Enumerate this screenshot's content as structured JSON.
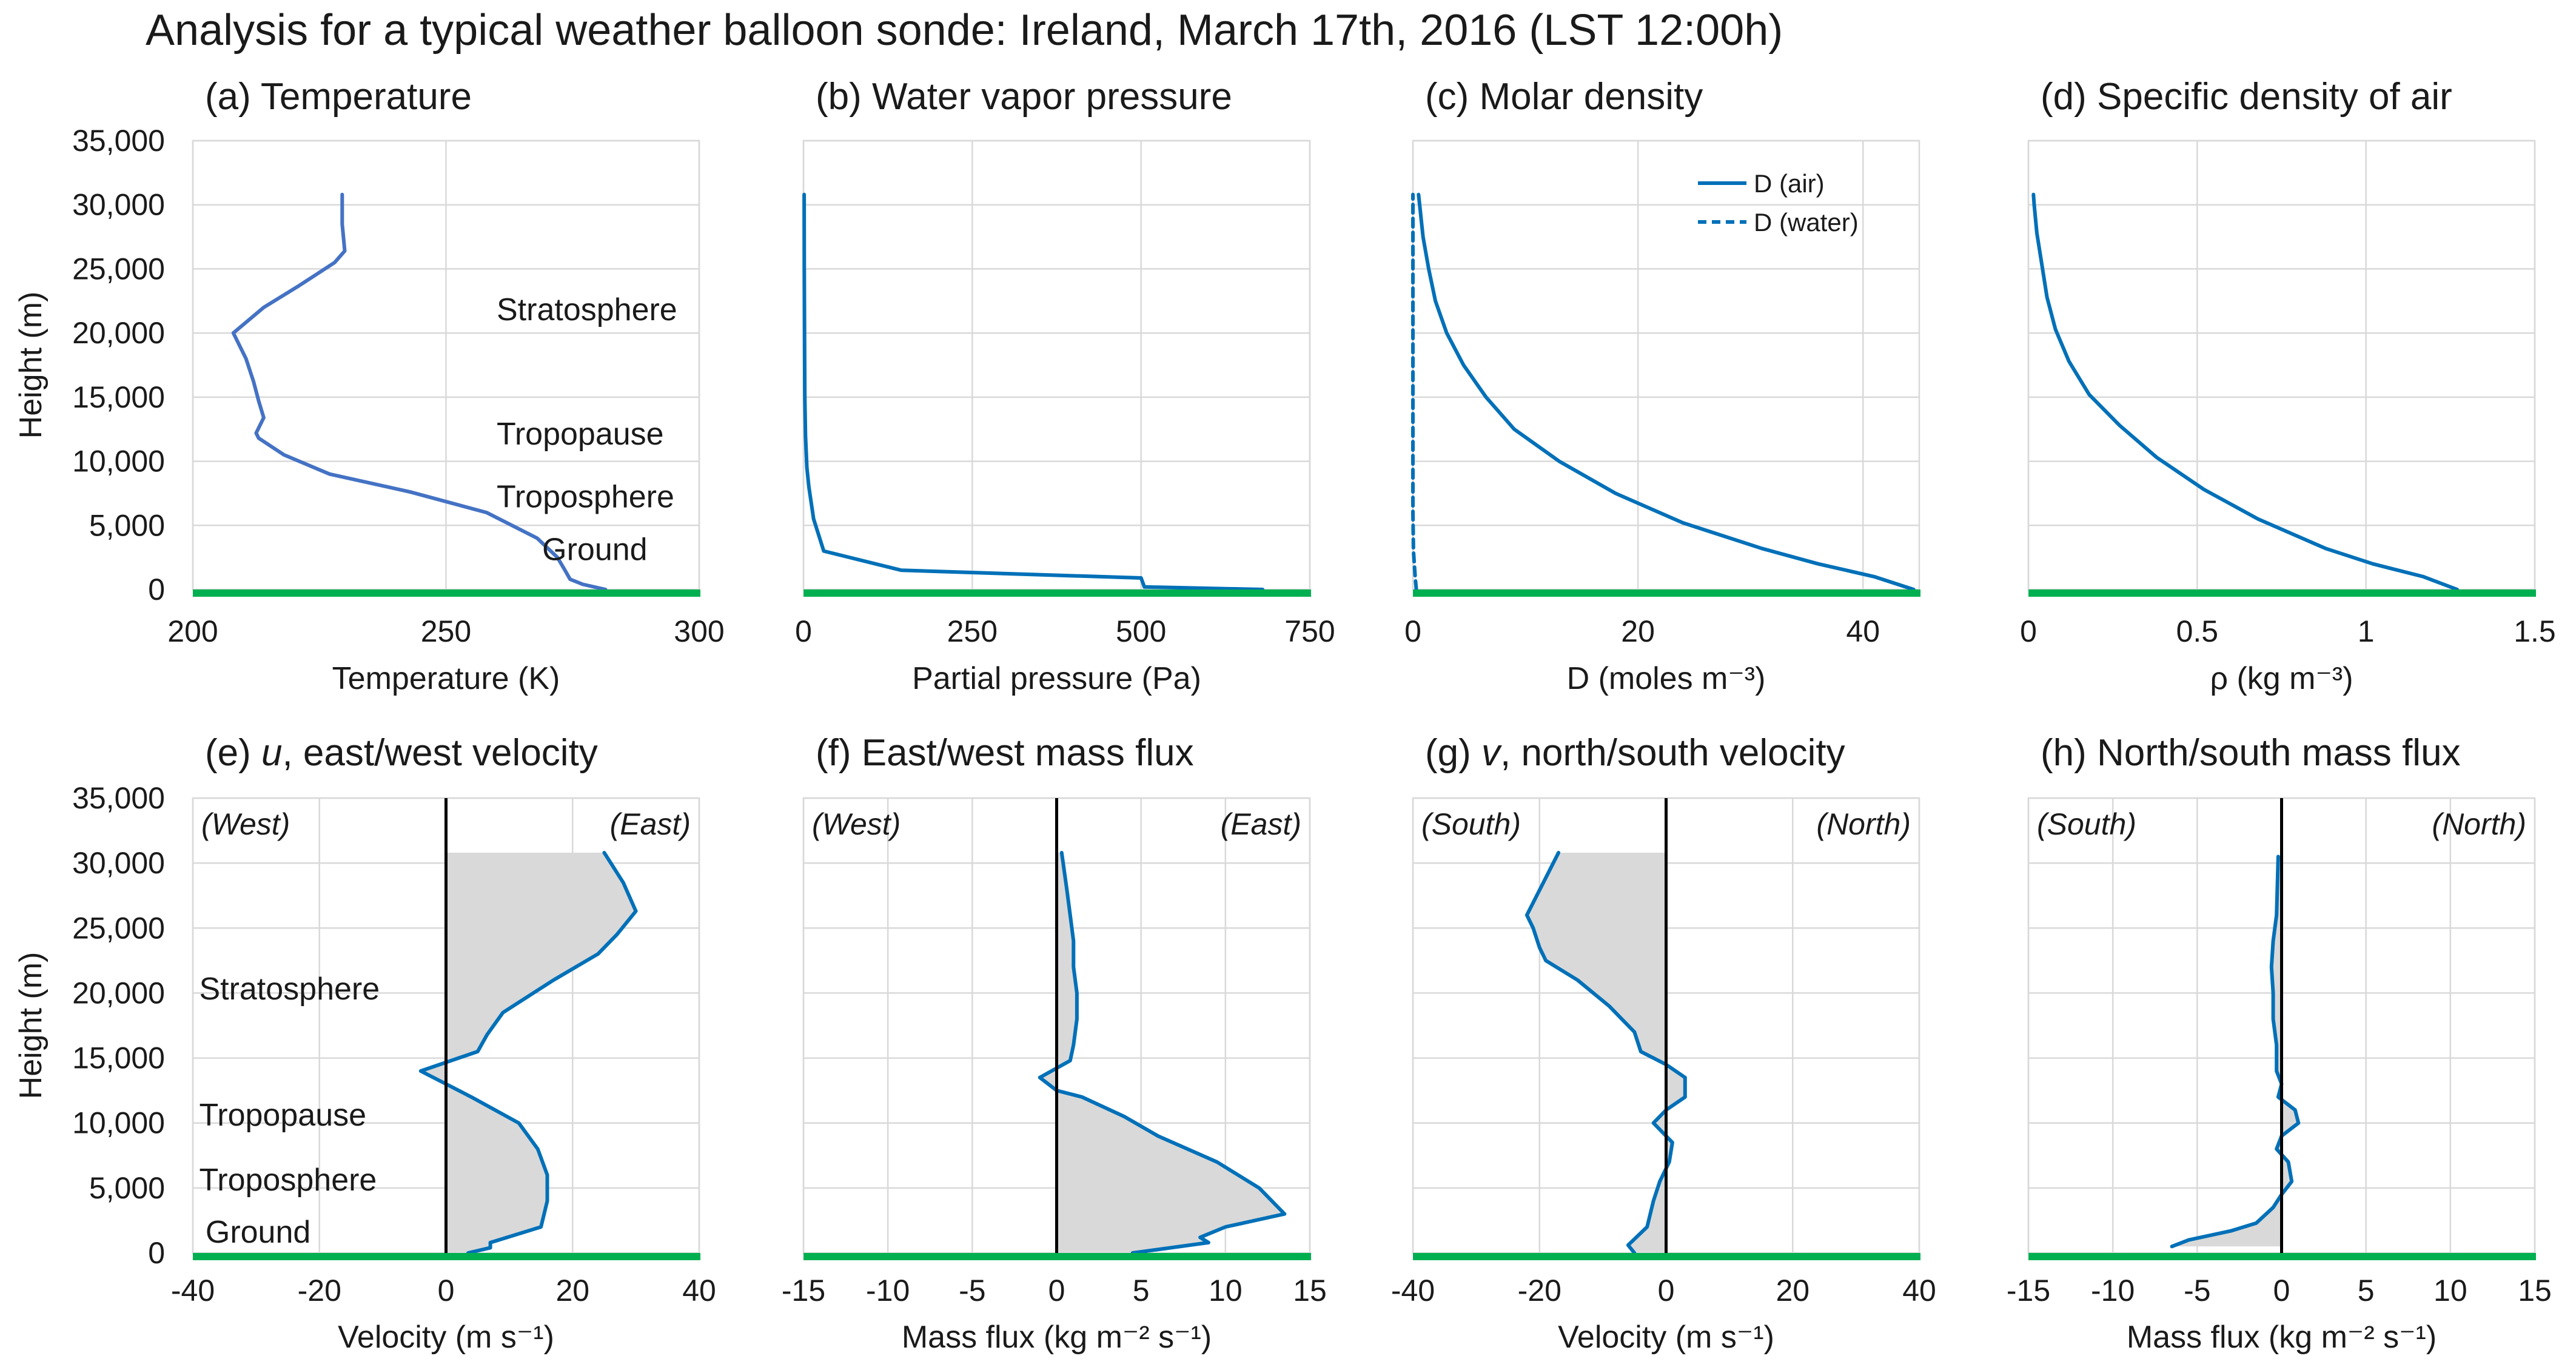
{
  "title": "Analysis for a typical weather balloon sonde: Ireland, March 17th, 2016 (LST 12:00h)",
  "y_axis_label": "Height (m)",
  "height_ticks": [
    "0",
    "5,000",
    "10,000",
    "15,000",
    "20,000",
    "25,000",
    "30,000",
    "35,000"
  ],
  "colors": {
    "temperature_line": "#4472c4",
    "data_line": "#0070b8",
    "ground_line": "#00b050",
    "fill": "#d9d9d9",
    "zero_line": "#000000",
    "grid": "#d9d9d9"
  },
  "chart_data": [
    {
      "id": "a",
      "type": "line",
      "title": "(a) Temperature",
      "xlabel": "Temperature (K)",
      "ylabel": "Height (m)",
      "xlim": [
        200,
        300
      ],
      "ylim": [
        0,
        35000
      ],
      "x_ticks": [
        200,
        250,
        300
      ],
      "x_tick_labels": [
        "200",
        "250",
        "300"
      ],
      "show_y_labels": true,
      "series": [
        {
          "name": "Temperature",
          "color": "#4472c4",
          "style": "solid",
          "points": [
            [
              281.5,
              0
            ],
            [
              277,
              400
            ],
            [
              274.5,
              800
            ],
            [
              273.5,
              1500
            ],
            [
              272,
              2500
            ],
            [
              268,
              4000
            ],
            [
              258,
              6000
            ],
            [
              243,
              7600
            ],
            [
              227,
              9000
            ],
            [
              218,
              10500
            ],
            [
              213,
              11800
            ],
            [
              212.5,
              12200
            ],
            [
              214,
              13400
            ],
            [
              213,
              14700
            ],
            [
              212,
              16200
            ],
            [
              210.5,
              18000
            ],
            [
              208,
              20000
            ],
            [
              214,
              22000
            ],
            [
              221,
              23700
            ],
            [
              228,
              25500
            ],
            [
              230,
              26400
            ],
            [
              229.5,
              28500
            ],
            [
              229.5,
              30800
            ]
          ]
        }
      ],
      "annotations": [
        {
          "text": "Stratosphere",
          "x": 260,
          "y": 21000
        },
        {
          "text": "Tropopause",
          "x": 260,
          "y": 11300
        },
        {
          "text": "Troposphere",
          "x": 260,
          "y": 6400
        },
        {
          "text": "Ground",
          "x": 269,
          "y": 2300
        }
      ]
    },
    {
      "id": "b",
      "type": "line",
      "title": "(b) Water vapor pressure",
      "xlabel": "Partial pressure (Pa)",
      "ylabel": "",
      "xlim": [
        0,
        750
      ],
      "ylim": [
        0,
        35000
      ],
      "x_ticks": [
        0,
        250,
        500,
        750
      ],
      "x_tick_labels": [
        "0",
        "250",
        "500",
        "750"
      ],
      "show_y_labels": false,
      "series": [
        {
          "name": "Water vapor pressure",
          "color": "#0070b8",
          "style": "solid",
          "points": [
            [
              680,
              0
            ],
            [
              505,
              200
            ],
            [
              500,
              900
            ],
            [
              145,
              1500
            ],
            [
              30,
              3000
            ],
            [
              15,
              5500
            ],
            [
              8,
              8000
            ],
            [
              5,
              9500
            ],
            [
              3,
              12000
            ],
            [
              2,
              15000
            ],
            [
              1.5,
              20000
            ],
            [
              1.2,
              25000
            ],
            [
              1,
              30800
            ]
          ]
        }
      ]
    },
    {
      "id": "c",
      "type": "line",
      "title": "(c) Molar density",
      "xlabel": "D (moles m⁻³)",
      "ylabel": "",
      "xlim": [
        0,
        45
      ],
      "ylim": [
        0,
        35000
      ],
      "x_ticks": [
        0,
        20,
        40
      ],
      "x_tick_labels": [
        "0",
        "20",
        "40"
      ],
      "show_y_labels": false,
      "legend": [
        "D (air)",
        "D (water)"
      ],
      "series": [
        {
          "name": "D (air)",
          "color": "#0070b8",
          "style": "solid",
          "points": [
            [
              44.5,
              0
            ],
            [
              41,
              1000
            ],
            [
              36,
              2000
            ],
            [
              31,
              3200
            ],
            [
              24,
              5200
            ],
            [
              18,
              7500
            ],
            [
              13,
              10000
            ],
            [
              9,
              12500
            ],
            [
              6.5,
              15000
            ],
            [
              4.5,
              17500
            ],
            [
              3,
              20000
            ],
            [
              2,
              22500
            ],
            [
              1.4,
              25000
            ],
            [
              0.9,
              27500
            ],
            [
              0.6,
              30000
            ],
            [
              0.5,
              30800
            ]
          ]
        },
        {
          "name": "D (water)",
          "color": "#0070b8",
          "style": "dashed",
          "points": [
            [
              0.3,
              0
            ],
            [
              0.2,
              1000
            ],
            [
              0.05,
              3000
            ],
            [
              0,
              6000
            ],
            [
              0,
              30800
            ]
          ]
        }
      ]
    },
    {
      "id": "d",
      "type": "line",
      "title": "(d) Specific density of air",
      "xlabel": "ρ (kg m⁻³)",
      "ylabel": "",
      "xlim": [
        0,
        1.5
      ],
      "ylim": [
        0,
        35000
      ],
      "x_ticks": [
        0,
        0.5,
        1,
        1.5
      ],
      "x_tick_labels": [
        "0",
        "0.5",
        "1",
        "1.5"
      ],
      "show_y_labels": false,
      "series": [
        {
          "name": "Specific density of air",
          "color": "#0070b8",
          "style": "solid",
          "points": [
            [
              1.27,
              0
            ],
            [
              1.17,
              1000
            ],
            [
              1.02,
              2000
            ],
            [
              0.88,
              3200
            ],
            [
              0.68,
              5500
            ],
            [
              0.52,
              7800
            ],
            [
              0.38,
              10300
            ],
            [
              0.27,
              12800
            ],
            [
              0.18,
              15200
            ],
            [
              0.12,
              17800
            ],
            [
              0.08,
              20300
            ],
            [
              0.055,
              22800
            ],
            [
              0.04,
              25300
            ],
            [
              0.025,
              27800
            ],
            [
              0.017,
              30000
            ],
            [
              0.015,
              30800
            ]
          ]
        }
      ]
    },
    {
      "id": "e",
      "type": "area",
      "title": "(e) u, east/west velocity",
      "title_italic_word": "u",
      "xlabel": "Velocity (m s⁻¹)",
      "ylabel": "Height (m)",
      "xlim": [
        -40,
        40
      ],
      "ylim": [
        0,
        35000
      ],
      "x_ticks": [
        -40,
        -20,
        0,
        20,
        40
      ],
      "x_tick_labels": [
        "-40",
        "-20",
        "0",
        "20",
        "40"
      ],
      "show_y_labels": true,
      "direction_labels": {
        "left": "(West)",
        "right": "(East)"
      },
      "series": [
        {
          "name": "u",
          "color": "#0070b8",
          "style": "solid",
          "fill": true,
          "points": [
            [
              3.5,
              0
            ],
            [
              7,
              400
            ],
            [
              7,
              800
            ],
            [
              15,
              2000
            ],
            [
              16,
              4000
            ],
            [
              16,
              6000
            ],
            [
              14.5,
              8000
            ],
            [
              11.5,
              10000
            ],
            [
              4,
              12000
            ],
            [
              -4,
              14000
            ],
            [
              5,
              15500
            ],
            [
              6.5,
              16800
            ],
            [
              9,
              18500
            ],
            [
              17,
              21000
            ],
            [
              24,
              23000
            ],
            [
              27,
              24500
            ],
            [
              30,
              26300
            ],
            [
              28,
              28500
            ],
            [
              25,
              30800
            ]
          ]
        }
      ],
      "annotations": [
        {
          "text": "Stratosphere",
          "x": -39,
          "y": 19500
        },
        {
          "text": "Tropopause",
          "x": -39,
          "y": 9800
        },
        {
          "text": "Troposphere",
          "x": -39,
          "y": 4800
        },
        {
          "text": "Ground",
          "x": -38,
          "y": 800
        }
      ]
    },
    {
      "id": "f",
      "type": "area",
      "title": "(f) East/west mass flux",
      "xlabel": "Mass flux (kg m⁻² s⁻¹)",
      "ylabel": "",
      "xlim": [
        -15,
        15
      ],
      "ylim": [
        0,
        35000
      ],
      "x_ticks": [
        -15,
        -10,
        -5,
        0,
        5,
        10,
        15
      ],
      "x_tick_labels": [
        "-15",
        "-10",
        "-5",
        "0",
        "5",
        "10",
        "15"
      ],
      "show_y_labels": false,
      "direction_labels": {
        "left": "(West)",
        "right": "(East)"
      },
      "series": [
        {
          "name": "East/west mass flux",
          "color": "#0070b8",
          "style": "solid",
          "fill": true,
          "points": [
            [
              4.5,
              0
            ],
            [
              9,
              800
            ],
            [
              8.5,
              1200
            ],
            [
              10,
              2000
            ],
            [
              13.5,
              3000
            ],
            [
              12,
              5000
            ],
            [
              9.5,
              7000
            ],
            [
              6,
              9000
            ],
            [
              4,
              10500
            ],
            [
              1.5,
              12000
            ],
            [
              0,
              12500
            ],
            [
              -1,
              13500
            ],
            [
              0.8,
              14800
            ],
            [
              1,
              16000
            ],
            [
              1.2,
              18000
            ],
            [
              1.2,
              20000
            ],
            [
              1,
              22000
            ],
            [
              1,
              24000
            ],
            [
              0.8,
              26000
            ],
            [
              0.6,
              28000
            ],
            [
              0.3,
              30800
            ]
          ]
        }
      ]
    },
    {
      "id": "g",
      "type": "area",
      "title": "(g) v, north/south velocity",
      "title_italic_word": "v",
      "xlabel": "Velocity (m s⁻¹)",
      "ylabel": "",
      "xlim": [
        -40,
        40
      ],
      "ylim": [
        0,
        35000
      ],
      "x_ticks": [
        -40,
        -20,
        0,
        20,
        40
      ],
      "x_tick_labels": [
        "-40",
        "-20",
        "0",
        "20",
        "40"
      ],
      "show_y_labels": false,
      "direction_labels": {
        "left": "(South)",
        "right": "(North)"
      },
      "series": [
        {
          "name": "v",
          "color": "#0070b8",
          "style": "solid",
          "fill": true,
          "points": [
            [
              -5,
              0
            ],
            [
              -6,
              600
            ],
            [
              -3,
              2000
            ],
            [
              -2,
              4000
            ],
            [
              -1,
              5500
            ],
            [
              0.5,
              7000
            ],
            [
              1,
              8500
            ],
            [
              -2,
              10000
            ],
            [
              0,
              11000
            ],
            [
              3,
              12000
            ],
            [
              3,
              13500
            ],
            [
              0,
              14500
            ],
            [
              -4,
              15500
            ],
            [
              -5,
              17000
            ],
            [
              -9,
              19000
            ],
            [
              -14,
              21000
            ],
            [
              -19,
              22500
            ],
            [
              -20,
              23500
            ],
            [
              -21,
              25000
            ],
            [
              -22,
              26000
            ],
            [
              -17,
              30800
            ]
          ]
        }
      ]
    },
    {
      "id": "h",
      "type": "area",
      "title": "(h) North/south mass flux",
      "xlabel": "Mass flux (kg m⁻² s⁻¹)",
      "ylabel": "",
      "xlim": [
        -15,
        15
      ],
      "ylim": [
        0,
        35000
      ],
      "x_ticks": [
        -15,
        -10,
        -5,
        0,
        5,
        10,
        15
      ],
      "x_tick_labels": [
        "-15",
        "-10",
        "-5",
        "0",
        "5",
        "10",
        "15"
      ],
      "show_y_labels": false,
      "direction_labels": {
        "left": "(South)",
        "right": "(North)"
      },
      "series": [
        {
          "name": "North/south mass flux",
          "color": "#0070b8",
          "style": "solid",
          "fill": true,
          "points": [
            [
              -6.5,
              500
            ],
            [
              -5.5,
              1000
            ],
            [
              -3,
              1700
            ],
            [
              -1.5,
              2300
            ],
            [
              -0.5,
              3500
            ],
            [
              0,
              4500
            ],
            [
              0.6,
              5500
            ],
            [
              0.4,
              7000
            ],
            [
              -0.3,
              8000
            ],
            [
              0,
              9000
            ],
            [
              1,
              10000
            ],
            [
              0.8,
              11000
            ],
            [
              -0.2,
              12000
            ],
            [
              0,
              13000
            ],
            [
              -0.3,
              14000
            ],
            [
              -0.3,
              16000
            ],
            [
              -0.5,
              18000
            ],
            [
              -0.5,
              20000
            ],
            [
              -0.6,
              22000
            ],
            [
              -0.5,
              24000
            ],
            [
              -0.3,
              26000
            ],
            [
              -0.2,
              30500
            ]
          ]
        }
      ]
    }
  ]
}
